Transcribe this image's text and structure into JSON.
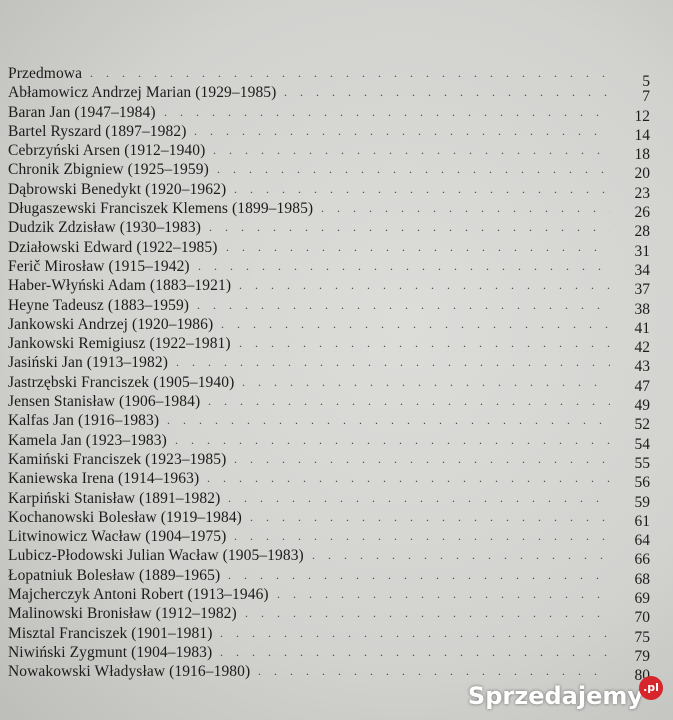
{
  "toc": [
    {
      "title": "Przedmowa",
      "page": "5"
    },
    {
      "title": "Abłamowicz Andrzej Marian (1929–1985)",
      "page": "7"
    },
    {
      "title": "Baran Jan (1947–1984)",
      "page": "12"
    },
    {
      "title": "Bartel Ryszard (1897–1982)",
      "page": "14"
    },
    {
      "title": "Cebrzyński Arsen (1912–1940)",
      "page": "18"
    },
    {
      "title": "Chronik Zbigniew (1925–1959)",
      "page": "20"
    },
    {
      "title": "Dąbrowski Benedykt (1920–1962)",
      "page": "23"
    },
    {
      "title": "Długaszewski Franciszek Klemens (1899–1985)",
      "page": "26"
    },
    {
      "title": "Dudzik Zdzisław (1930–1983)",
      "page": "28"
    },
    {
      "title": "Działowski Edward (1922–1985)",
      "page": "31"
    },
    {
      "title": "Ferič Mirosław (1915–1942)",
      "page": "34"
    },
    {
      "title": "Haber-Włyński Adam (1883–1921)",
      "page": "37"
    },
    {
      "title": "Heyne Tadeusz (1883–1959)",
      "page": "38"
    },
    {
      "title": "Jankowski Andrzej (1920–1986)",
      "page": "41"
    },
    {
      "title": "Jankowski Remigiusz (1922–1981)",
      "page": "42"
    },
    {
      "title": "Jasiński Jan (1913–1982)",
      "page": "43"
    },
    {
      "title": "Jastrzębski Franciszek (1905–1940)",
      "page": "47"
    },
    {
      "title": "Jensen Stanisław (1906–1984)",
      "page": "49"
    },
    {
      "title": "Kalfas Jan (1916–1983)",
      "page": "52"
    },
    {
      "title": "Kamela Jan (1923–1983)",
      "page": "54"
    },
    {
      "title": "Kamiński Franciszek (1923–1985)",
      "page": "55"
    },
    {
      "title": "Kaniewska Irena (1914–1963)",
      "page": "56"
    },
    {
      "title": "Karpiński Stanisław (1891–1982)",
      "page": "59"
    },
    {
      "title": "Kochanowski Bolesław (1919–1984)",
      "page": "61"
    },
    {
      "title": "Litwinowicz Wacław (1904–1975)",
      "page": "64"
    },
    {
      "title": "Lubicz-Płodowski Julian Wacław (1905–1983)",
      "page": "66"
    },
    {
      "title": "Łopatniuk Bolesław (1889–1965)",
      "page": "68"
    },
    {
      "title": "Majcherczyk Antoni Robert (1913–1946)",
      "page": "69"
    },
    {
      "title": "Malinowski Bronisław (1912–1982)",
      "page": "70"
    },
    {
      "title": "Misztal Franciszek (1901–1981)",
      "page": "75"
    },
    {
      "title": "Niwiński Zygmunt (1904–1983)",
      "page": "79"
    },
    {
      "title": "Nowakowski Władysław (1916–1980)",
      "page": "80"
    }
  ],
  "watermark": {
    "text": "Sprzedajemy",
    "suffix": ".pl",
    "accent": "#d7262b"
  }
}
